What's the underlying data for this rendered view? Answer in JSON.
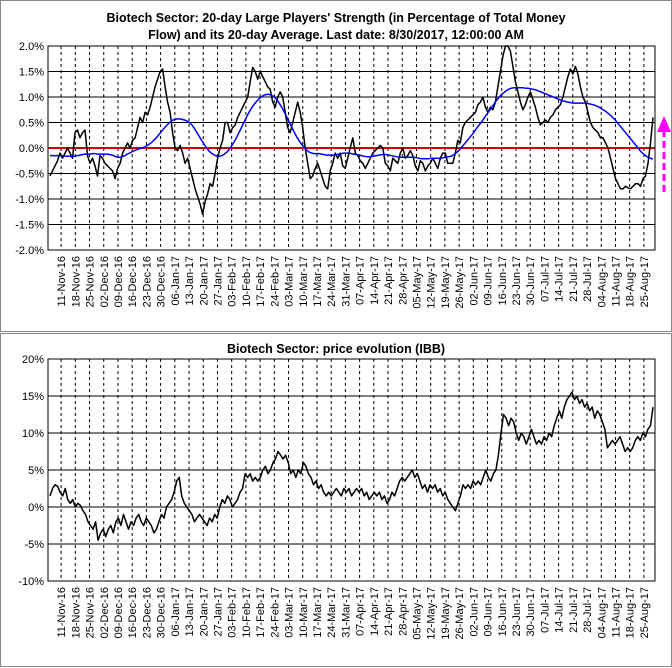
{
  "chart_data": [
    {
      "type": "line",
      "title_lines": [
        "Biotech Sector: 20-day Large Players' Strength (in Percentage of Total Money",
        "Flow) and its 20-day Average. Last date: 8/30/2017, 12:00:00 AM"
      ],
      "ylim": [
        -2.0,
        2.0
      ],
      "y_ticks": [
        "2.0%",
        "1.5%",
        "1.0%",
        "0.5%",
        "0.0%",
        "-0.5%",
        "-1.0%",
        "-1.5%",
        "-2.0%"
      ],
      "y_tick_values": [
        2.0,
        1.5,
        1.0,
        0.5,
        0.0,
        -0.5,
        -1.0,
        -1.5,
        -2.0
      ],
      "x_labels": [
        "11-Nov-16",
        "18-Nov-16",
        "25-Nov-16",
        "02-Dec-16",
        "09-Dec-16",
        "16-Dec-16",
        "23-Dec-16",
        "30-Dec-16",
        "06-Jan-17",
        "13-Jan-17",
        "20-Jan-17",
        "27-Jan-17",
        "03-Feb-17",
        "10-Feb-17",
        "17-Feb-17",
        "24-Feb-17",
        "03-Mar-17",
        "10-Mar-17",
        "17-Mar-17",
        "24-Mar-17",
        "31-Mar-17",
        "07-Apr-17",
        "14-Apr-17",
        "21-Apr-17",
        "28-Apr-17",
        "05-May-17",
        "12-May-17",
        "19-May-17",
        "26-May-17",
        "02-Jun-17",
        "09-Jun-17",
        "16-Jun-17",
        "23-Jun-17",
        "30-Jun-17",
        "07-Jul-17",
        "14-Jul-17",
        "21-Jul-17",
        "28-Jul-17",
        "04-Aug-17",
        "11-Aug-17",
        "18-Aug-17",
        "25-Aug-17"
      ],
      "zero_line_color": "#cc0000",
      "arrow_color": "#ff00ff",
      "series": [
        {
          "color": "#000000",
          "values": [
            -0.55,
            -0.45,
            -0.35,
            -0.25,
            -0.1,
            -0.2,
            -0.1,
            0.0,
            -0.1,
            -0.2,
            0.3,
            0.35,
            0.2,
            0.3,
            0.35,
            -0.15,
            -0.3,
            -0.2,
            -0.35,
            -0.55,
            -0.15,
            -0.2,
            -0.3,
            -0.35,
            -0.4,
            -0.45,
            -0.6,
            -0.4,
            -0.3,
            -0.1,
            0.0,
            0.1,
            0.0,
            0.15,
            0.2,
            0.4,
            0.6,
            0.5,
            0.7,
            0.65,
            0.8,
            1.0,
            1.2,
            1.35,
            1.5,
            1.55,
            1.2,
            0.9,
            0.7,
            0.3,
            0.0,
            -0.05,
            0.05,
            -0.1,
            -0.3,
            -0.2,
            -0.4,
            -0.6,
            -0.8,
            -0.95,
            -1.1,
            -1.3,
            -1.05,
            -0.9,
            -0.7,
            -0.75,
            -0.5,
            -0.2,
            0.0,
            0.15,
            0.5,
            0.5,
            0.3,
            0.4,
            0.45,
            0.6,
            0.7,
            0.8,
            0.9,
            1.0,
            1.3,
            1.58,
            1.5,
            1.35,
            1.5,
            1.4,
            1.3,
            1.2,
            1.15,
            0.9,
            0.8,
            1.0,
            1.1,
            1.0,
            0.7,
            0.4,
            0.3,
            0.5,
            0.7,
            0.9,
            0.7,
            0.4,
            0.0,
            -0.3,
            -0.6,
            -0.55,
            -0.4,
            -0.3,
            -0.45,
            -0.6,
            -0.75,
            -0.8,
            -0.45,
            -0.3,
            -0.1,
            -0.2,
            -0.1,
            -0.35,
            -0.4,
            -0.2,
            0.0,
            0.2,
            -0.1,
            -0.15,
            -0.25,
            -0.3,
            -0.4,
            -0.3,
            -0.2,
            -0.1,
            -0.05,
            0.0,
            0.05,
            0.0,
            -0.3,
            -0.35,
            -0.45,
            -0.2,
            -0.25,
            -0.3,
            -0.1,
            0.0,
            -0.2,
            -0.15,
            -0.05,
            -0.15,
            -0.35,
            -0.45,
            -0.25,
            -0.3,
            -0.45,
            -0.35,
            -0.3,
            -0.2,
            -0.3,
            -0.4,
            -0.2,
            -0.1,
            -0.1,
            -0.3,
            -0.3,
            -0.3,
            -0.1,
            0.15,
            0.1,
            0.4,
            0.5,
            0.55,
            0.6,
            0.65,
            0.7,
            0.85,
            0.9,
            1.0,
            0.8,
            0.7,
            0.8,
            0.75,
            0.9,
            1.2,
            1.5,
            1.8,
            2.0,
            2.0,
            1.9,
            1.6,
            1.3,
            1.1,
            0.9,
            0.75,
            0.85,
            1.0,
            1.1,
            0.95,
            0.8,
            0.6,
            0.45,
            0.5,
            0.55,
            0.5,
            0.6,
            0.65,
            0.75,
            0.8,
            0.85,
            1.0,
            1.2,
            1.4,
            1.55,
            1.45,
            1.6,
            1.45,
            1.2,
            1.0,
            0.9,
            0.7,
            0.5,
            0.4,
            0.35,
            0.3,
            0.2,
            0.2,
            0.1,
            0.0,
            -0.2,
            -0.4,
            -0.6,
            -0.7,
            -0.8,
            -0.8,
            -0.75,
            -0.78,
            -0.8,
            -0.75,
            -0.7,
            -0.7,
            -0.75,
            -0.6,
            -0.55,
            -0.3,
            0.1,
            0.6
          ]
        },
        {
          "color": "#0000ff",
          "values": [
            -0.15,
            -0.15,
            -0.15,
            -0.15,
            -0.15,
            -0.15,
            -0.16,
            -0.16,
            -0.16,
            -0.16,
            -0.16,
            -0.15,
            -0.14,
            -0.13,
            -0.12,
            -0.12,
            -0.12,
            -0.11,
            -0.11,
            -0.12,
            -0.12,
            -0.12,
            -0.12,
            -0.12,
            -0.13,
            -0.14,
            -0.16,
            -0.18,
            -0.18,
            -0.17,
            -0.15,
            -0.12,
            -0.1,
            -0.07,
            -0.05,
            -0.03,
            -0.01,
            0.0,
            0.02,
            0.05,
            0.08,
            0.12,
            0.17,
            0.22,
            0.28,
            0.34,
            0.4,
            0.45,
            0.5,
            0.54,
            0.56,
            0.57,
            0.57,
            0.56,
            0.55,
            0.53,
            0.5,
            0.45,
            0.38,
            0.3,
            0.22,
            0.14,
            0.06,
            -0.01,
            -0.07,
            -0.11,
            -0.14,
            -0.16,
            -0.16,
            -0.15,
            -0.12,
            -0.08,
            -0.02,
            0.05,
            0.13,
            0.22,
            0.32,
            0.42,
            0.52,
            0.62,
            0.71,
            0.79,
            0.86,
            0.92,
            0.97,
            1.01,
            1.04,
            1.05,
            1.05,
            1.03,
            1.0,
            0.95,
            0.88,
            0.8,
            0.71,
            0.61,
            0.51,
            0.41,
            0.31,
            0.22,
            0.14,
            0.07,
            0.01,
            -0.04,
            -0.08,
            -0.1,
            -0.11,
            -0.11,
            -0.11,
            -0.12,
            -0.13,
            -0.14,
            -0.14,
            -0.14,
            -0.14,
            -0.13,
            -0.12,
            -0.11,
            -0.1,
            -0.1,
            -0.1,
            -0.11,
            -0.12,
            -0.13,
            -0.14,
            -0.15,
            -0.16,
            -0.17,
            -0.17,
            -0.17,
            -0.16,
            -0.15,
            -0.14,
            -0.13,
            -0.13,
            -0.13,
            -0.14,
            -0.15,
            -0.16,
            -0.17,
            -0.18,
            -0.18,
            -0.18,
            -0.18,
            -0.18,
            -0.18,
            -0.18,
            -0.19,
            -0.2,
            -0.21,
            -0.21,
            -0.21,
            -0.21,
            -0.2,
            -0.2,
            -0.2,
            -0.2,
            -0.2,
            -0.19,
            -0.18,
            -0.17,
            -0.16,
            -0.13,
            -0.1,
            -0.05,
            0.0,
            0.06,
            0.12,
            0.18,
            0.24,
            0.3,
            0.37,
            0.44,
            0.5,
            0.57,
            0.64,
            0.71,
            0.78,
            0.85,
            0.92,
            0.98,
            1.04,
            1.08,
            1.12,
            1.15,
            1.17,
            1.18,
            1.18,
            1.18,
            1.18,
            1.18,
            1.17,
            1.17,
            1.16,
            1.15,
            1.14,
            1.12,
            1.1,
            1.08,
            1.06,
            1.04,
            1.02,
            1.0,
            0.98,
            0.96,
            0.94,
            0.92,
            0.91,
            0.9,
            0.89,
            0.88,
            0.88,
            0.88,
            0.88,
            0.88,
            0.88,
            0.87,
            0.86,
            0.85,
            0.83,
            0.81,
            0.78,
            0.75,
            0.72,
            0.68,
            0.64,
            0.59,
            0.54,
            0.48,
            0.42,
            0.36,
            0.3,
            0.24,
            0.18,
            0.12,
            0.06,
            0.0,
            -0.06,
            -0.11,
            -0.15,
            -0.18,
            -0.2,
            -0.22
          ]
        }
      ]
    },
    {
      "type": "line",
      "title": "Biotech Sector: price evolution (IBB)",
      "ylim": [
        -10,
        20
      ],
      "y_ticks": [
        "20%",
        "15%",
        "10%",
        "5%",
        "0%",
        "-5%",
        "-10%"
      ],
      "y_tick_values": [
        20,
        15,
        10,
        5,
        0,
        -5,
        -10
      ],
      "x_labels": [
        "11-Nov-16",
        "18-Nov-16",
        "25-Nov-16",
        "02-Dec-16",
        "09-Dec-16",
        "16-Dec-16",
        "23-Dec-16",
        "30-Dec-16",
        "06-Jan-17",
        "13-Jan-17",
        "20-Jan-17",
        "27-Jan-17",
        "03-Feb-17",
        "10-Feb-17",
        "17-Feb-17",
        "24-Feb-17",
        "03-Mar-17",
        "10-Mar-17",
        "17-Mar-17",
        "24-Mar-17",
        "31-Mar-17",
        "07-Apr-17",
        "14-Apr-17",
        "21-Apr-17",
        "28-Apr-17",
        "05-May-17",
        "12-May-17",
        "19-May-17",
        "26-May-17",
        "02-Jun-17",
        "09-Jun-17",
        "16-Jun-17",
        "23-Jun-17",
        "30-Jun-17",
        "07-Jul-17",
        "14-Jul-17",
        "21-Jul-17",
        "28-Jul-17",
        "04-Aug-17",
        "11-Aug-17",
        "18-Aug-17",
        "25-Aug-17"
      ],
      "series": [
        {
          "color": "#000000",
          "values": [
            1.5,
            2.5,
            3.0,
            2.8,
            2.0,
            1.5,
            2.5,
            1.0,
            0.5,
            1.0,
            0.0,
            0.5,
            0.2,
            -0.5,
            -1.0,
            -2.0,
            -2.5,
            -3.0,
            -2.0,
            -4.5,
            -3.5,
            -3.0,
            -4.0,
            -3.0,
            -2.5,
            -3.5,
            -2.0,
            -1.5,
            -2.5,
            -1.0,
            -2.0,
            -3.0,
            -2.0,
            -2.5,
            -1.5,
            -1.0,
            -2.0,
            -2.5,
            -1.5,
            -2.0,
            -2.5,
            -3.5,
            -3.0,
            -2.0,
            -1.0,
            -1.5,
            0.0,
            0.5,
            1.0,
            2.0,
            3.5,
            4.0,
            1.5,
            0.5,
            0.0,
            -0.5,
            -1.0,
            -2.0,
            -1.5,
            -1.0,
            -1.5,
            -2.0,
            -2.5,
            -1.5,
            -2.0,
            -1.0,
            -1.5,
            0.0,
            1.0,
            0.5,
            1.5,
            1.0,
            0.0,
            0.5,
            1.0,
            2.0,
            2.5,
            4.5,
            4.0,
            4.5,
            3.5,
            4.0,
            3.5,
            4.0,
            5.0,
            5.5,
            4.5,
            5.0,
            6.0,
            6.5,
            7.5,
            7.0,
            6.5,
            7.0,
            6.0,
            4.5,
            5.0,
            4.0,
            5.0,
            4.5,
            6.0,
            5.5,
            4.5,
            4.0,
            3.0,
            3.5,
            2.5,
            3.0,
            2.0,
            1.5,
            2.0,
            1.5,
            2.0,
            2.5,
            2.0,
            1.5,
            2.5,
            2.0,
            2.5,
            1.5,
            2.0,
            2.5,
            2.0,
            2.5,
            1.5,
            2.0,
            1.0,
            1.5,
            2.0,
            1.5,
            2.0,
            1.0,
            1.5,
            0.5,
            1.0,
            2.0,
            1.5,
            2.5,
            3.5,
            4.0,
            3.5,
            4.0,
            4.5,
            5.0,
            4.0,
            4.5,
            3.5,
            2.5,
            3.0,
            2.0,
            3.0,
            2.5,
            3.0,
            2.0,
            2.5,
            1.5,
            2.0,
            1.0,
            0.5,
            0.0,
            -0.5,
            0.5,
            1.5,
            3.0,
            2.5,
            3.0,
            2.5,
            3.5,
            3.0,
            3.5,
            3.0,
            4.0,
            5.0,
            4.0,
            3.5,
            4.5,
            5.0,
            7.0,
            10.0,
            12.5,
            12.0,
            11.0,
            12.0,
            11.5,
            10.0,
            9.0,
            10.0,
            9.5,
            8.5,
            9.5,
            10.5,
            9.5,
            8.5,
            9.0,
            8.5,
            9.5,
            9.0,
            10.0,
            9.5,
            11.0,
            12.0,
            13.0,
            12.0,
            13.5,
            14.5,
            15.0,
            15.5,
            14.5,
            15.0,
            14.0,
            14.5,
            13.5,
            14.0,
            13.0,
            13.5,
            12.0,
            13.0,
            12.5,
            11.5,
            10.5,
            8.0,
            8.5,
            9.0,
            8.5,
            9.0,
            9.5,
            8.5,
            7.5,
            8.0,
            7.5,
            8.0,
            9.0,
            9.5,
            9.0,
            10.0,
            9.5,
            10.5,
            11.0,
            13.5
          ]
        }
      ]
    }
  ]
}
